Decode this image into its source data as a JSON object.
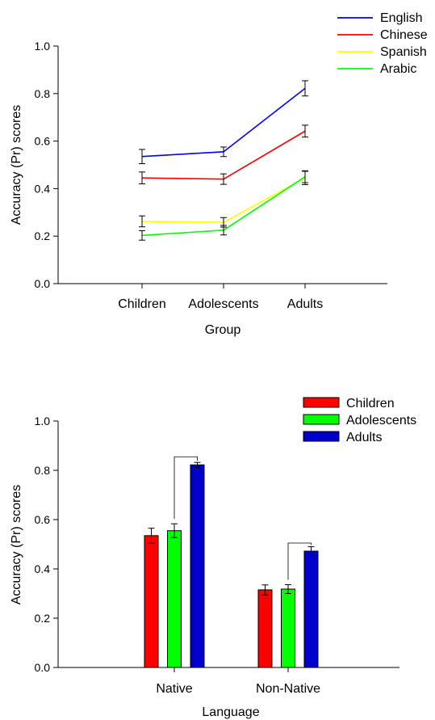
{
  "chart_data": [
    {
      "type": "line",
      "xlabel": "Group",
      "ylabel": "Accuracy (Pr) scores",
      "categories": [
        "Children",
        "Adolescents",
        "Adults"
      ],
      "ylim": [
        0,
        1
      ],
      "yticks": [
        "0.0",
        "0.2",
        "0.4",
        "0.6",
        "0.8",
        "1.0"
      ],
      "legend_position": "top-right",
      "series": [
        {
          "name": "English",
          "color": "#0000ff",
          "values": [
            0.535,
            0.555,
            0.822
          ],
          "errors": [
            0.03,
            0.02,
            0.032
          ]
        },
        {
          "name": "Chinese",
          "color": "#ff0000",
          "values": [
            0.445,
            0.44,
            0.642
          ],
          "errors": [
            0.025,
            0.022,
            0.025
          ]
        },
        {
          "name": "Spanish",
          "color": "#ffff00",
          "values": [
            0.262,
            0.258,
            0.445
          ],
          "errors": [
            0.023,
            0.02,
            0.028
          ]
        },
        {
          "name": "Arabic",
          "color": "#00ff00",
          "values": [
            0.203,
            0.225,
            0.45
          ],
          "errors": [
            0.02,
            0.02,
            0.025
          ]
        }
      ]
    },
    {
      "type": "bar",
      "xlabel": "Language",
      "ylabel": "Accuracy (Pr) scores",
      "categories": [
        "Native",
        "Non-Native"
      ],
      "ylim": [
        0,
        1
      ],
      "yticks": [
        "0.0",
        "0.2",
        "0.4",
        "0.6",
        "0.8",
        "1.0"
      ],
      "legend_position": "top-right",
      "series": [
        {
          "name": "Children",
          "color": "#ff0000",
          "values": [
            0.535,
            0.315
          ],
          "errors": [
            0.03,
            0.02
          ]
        },
        {
          "name": "Adolescents",
          "color": "#00ff00",
          "values": [
            0.555,
            0.318
          ],
          "errors": [
            0.028,
            0.018
          ]
        },
        {
          "name": "Adults",
          "color": "#0000cc",
          "values": [
            0.822,
            0.472
          ],
          "errors": [
            0.01,
            0.018
          ]
        }
      ],
      "brackets": [
        {
          "category": "Native",
          "from_series": "Adolescents",
          "to_series": "Adults",
          "y": 0.855
        },
        {
          "category": "Non-Native",
          "from_series": "Adolescents",
          "to_series": "Adults",
          "y": 0.505
        }
      ]
    }
  ]
}
